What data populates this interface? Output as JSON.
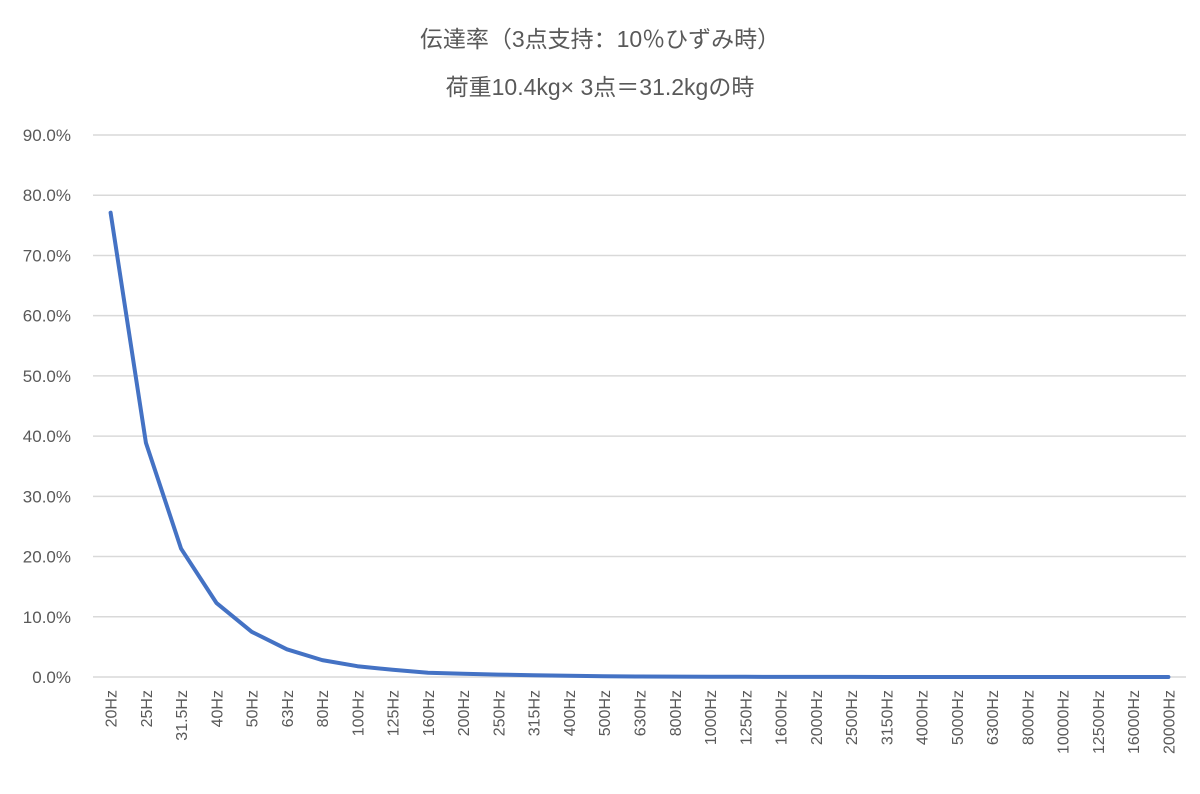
{
  "chart_data": {
    "type": "line",
    "title": "伝達率（3点支持：10％ひずみ時）",
    "subtitle": "荷重10.4kg× 3点＝31.2kgの時",
    "xlabel": "",
    "ylabel": "",
    "ylim": [
      0,
      0.9
    ],
    "yticks": [
      "0.0%",
      "10.0%",
      "20.0%",
      "30.0%",
      "40.0%",
      "50.0%",
      "60.0%",
      "70.0%",
      "80.0%",
      "90.0%"
    ],
    "grid": true,
    "legend": "none",
    "line_color": "#4472C4",
    "grid_color": "#D9D9D9",
    "categories": [
      "20Hz",
      "25Hz",
      "31.5Hz",
      "40Hz",
      "50Hz",
      "63Hz",
      "80Hz",
      "100Hz",
      "125Hz",
      "160Hz",
      "200Hz",
      "250Hz",
      "315Hz",
      "400Hz",
      "500Hz",
      "630Hz",
      "800Hz",
      "1000Hz",
      "1250Hz",
      "1600Hz",
      "2000Hz",
      "2500Hz",
      "3150Hz",
      "4000Hz",
      "5000Hz",
      "6300Hz",
      "8000Hz",
      "10000Hz",
      "12500Hz",
      "16000Hz",
      "20000Hz"
    ],
    "series": [
      {
        "name": "伝達率",
        "values": [
          0.771,
          0.389,
          0.213,
          0.123,
          0.075,
          0.046,
          0.028,
          0.018,
          0.012,
          0.007,
          0.0055,
          0.004,
          0.0028,
          0.002,
          0.0013,
          0.0009,
          0.0006,
          0.0004,
          0.0003,
          0.0002,
          0.00015,
          0.0001,
          6e-05,
          4e-05,
          3e-05,
          2e-05,
          1e-05,
          1e-05,
          0.0,
          0.0,
          0.0
        ]
      }
    ]
  }
}
